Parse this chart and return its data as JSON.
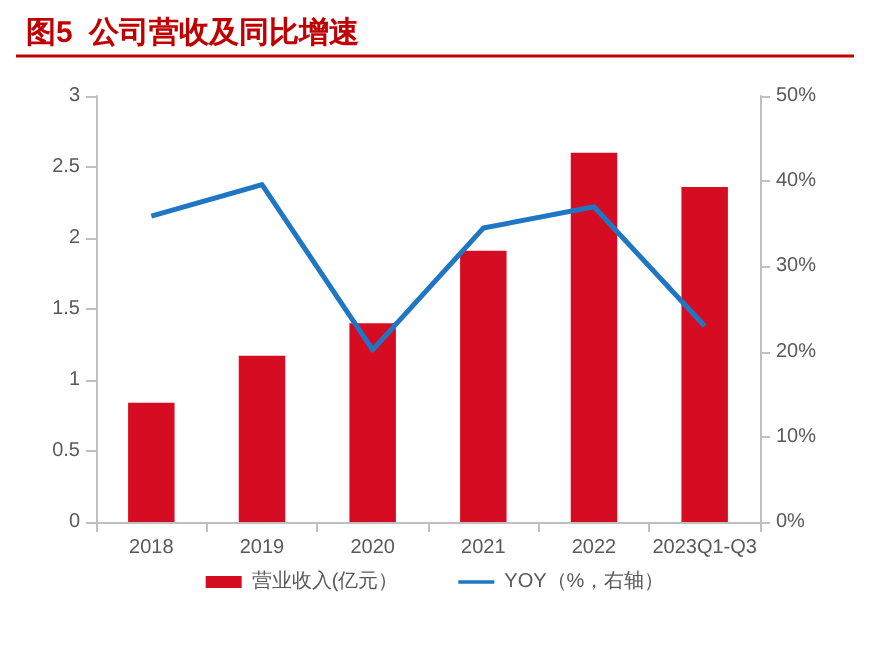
{
  "chart_data": {
    "type": "bar",
    "title": "图5  公司营收及同比增速",
    "categories": [
      "2018",
      "2019",
      "2020",
      "2021",
      "2022",
      "2023Q1-Q3"
    ],
    "series": [
      {
        "name": "营业收入(亿元）",
        "color": "#d50c22",
        "values": [
          0.84,
          1.17,
          1.4,
          1.91,
          2.6,
          2.36
        ]
      },
      {
        "name": "YOY（%，右轴）",
        "type": "line",
        "axis": "y2",
        "color": "#1f77c4",
        "values": [
          35.9,
          39.6,
          20.2,
          34.5,
          37.0,
          23.0
        ]
      }
    ],
    "ylim": [
      0,
      3
    ],
    "yticks": [
      0,
      0.5,
      1,
      1.5,
      2,
      2.5,
      3
    ],
    "y2lim": [
      0,
      50
    ],
    "y2ticks": [
      {
        "value": 0,
        "label": "0%"
      },
      {
        "value": 10,
        "label": "10%"
      },
      {
        "value": 20,
        "label": "20%"
      },
      {
        "value": 30,
        "label": "30%"
      },
      {
        "value": 40,
        "label": "40%"
      },
      {
        "value": 50,
        "label": "50%"
      }
    ],
    "grid": false,
    "legend": "bottom",
    "marker": "none",
    "line_style": "solid"
  }
}
